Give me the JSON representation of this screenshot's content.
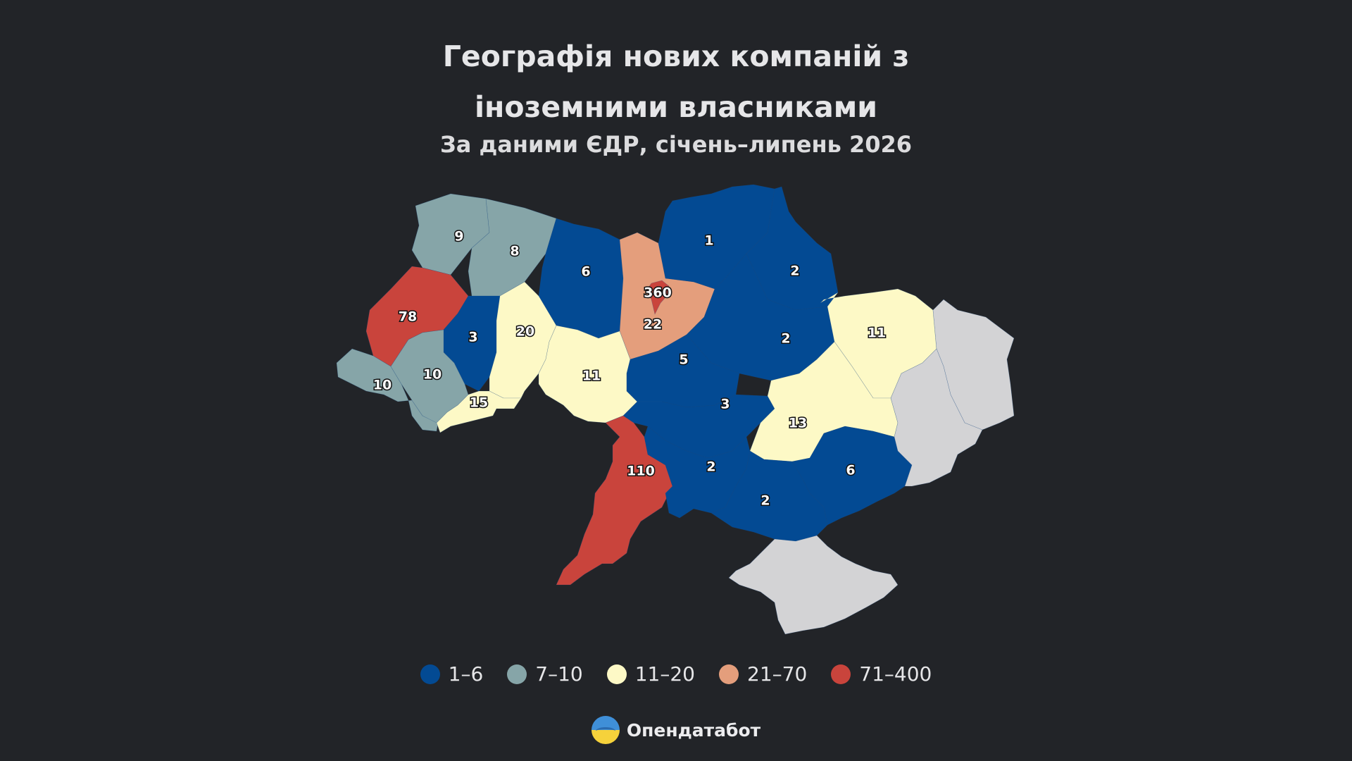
{
  "title": {
    "line1": "Географія нових компаній з",
    "line2": "іноземними власниками"
  },
  "subtitle": "За даними ЄДР, січень–липень 2026",
  "colors": {
    "bin_1_6": "#034a93",
    "bin_7_10": "#86a5a8",
    "bin_11_20": "#fdf9c6",
    "bin_21_70": "#e49e7c",
    "bin_71_400": "#c9443c",
    "no_data": "#d3d3d5",
    "background": "#222428"
  },
  "legend": [
    {
      "label": "1–6",
      "color": "#034a93"
    },
    {
      "label": "7–10",
      "color": "#86a5a8"
    },
    {
      "label": "11–20",
      "color": "#fdf9c6"
    },
    {
      "label": "21–70",
      "color": "#e49e7c"
    },
    {
      "label": "71–400",
      "color": "#c9443c"
    }
  ],
  "regions": [
    {
      "id": "volyn",
      "value": "9",
      "bin": "bin_7_10"
    },
    {
      "id": "rivne",
      "value": "8",
      "bin": "bin_7_10"
    },
    {
      "id": "zhytomyr",
      "value": "6",
      "bin": "bin_1_6"
    },
    {
      "id": "kyiv-oblast",
      "value": "22",
      "bin": "bin_21_70"
    },
    {
      "id": "kyiv-city",
      "value": "360",
      "bin": "bin_71_400"
    },
    {
      "id": "chernihiv",
      "value": "1",
      "bin": "bin_1_6"
    },
    {
      "id": "sumy",
      "value": "2",
      "bin": "bin_1_6"
    },
    {
      "id": "poltava",
      "value": "2",
      "bin": "bin_1_6"
    },
    {
      "id": "kharkiv",
      "value": "11",
      "bin": "bin_11_20"
    },
    {
      "id": "lviv",
      "value": "78",
      "bin": "bin_71_400"
    },
    {
      "id": "ternopil",
      "value": "3",
      "bin": "bin_1_6"
    },
    {
      "id": "khmelnytskyi",
      "value": "20",
      "bin": "bin_11_20"
    },
    {
      "id": "vinnytsia",
      "value": "11",
      "bin": "bin_11_20"
    },
    {
      "id": "cherkasy",
      "value": "5",
      "bin": "bin_1_6"
    },
    {
      "id": "zakarpattia",
      "value": "10",
      "bin": "bin_7_10"
    },
    {
      "id": "ivano-frankivsk",
      "value": "10",
      "bin": "bin_7_10"
    },
    {
      "id": "chernivtsi",
      "value": "15",
      "bin": "bin_11_20"
    },
    {
      "id": "kirovohrad",
      "value": "3",
      "bin": "bin_1_6"
    },
    {
      "id": "dnipropetrovsk",
      "value": "13",
      "bin": "bin_11_20"
    },
    {
      "id": "odesa",
      "value": "110",
      "bin": "bin_71_400"
    },
    {
      "id": "mykolaiv",
      "value": "2",
      "bin": "bin_1_6"
    },
    {
      "id": "kherson",
      "value": "2",
      "bin": "bin_1_6"
    },
    {
      "id": "zaporizhzhia",
      "value": "6",
      "bin": "bin_1_6"
    },
    {
      "id": "luhansk",
      "value": "",
      "bin": "no_data"
    },
    {
      "id": "donetsk",
      "value": "",
      "bin": "no_data"
    },
    {
      "id": "crimea",
      "value": "",
      "bin": "no_data"
    }
  ],
  "brand": {
    "name": "Опендатабот",
    "logo_icon": "opendatabot-logo-icon"
  }
}
